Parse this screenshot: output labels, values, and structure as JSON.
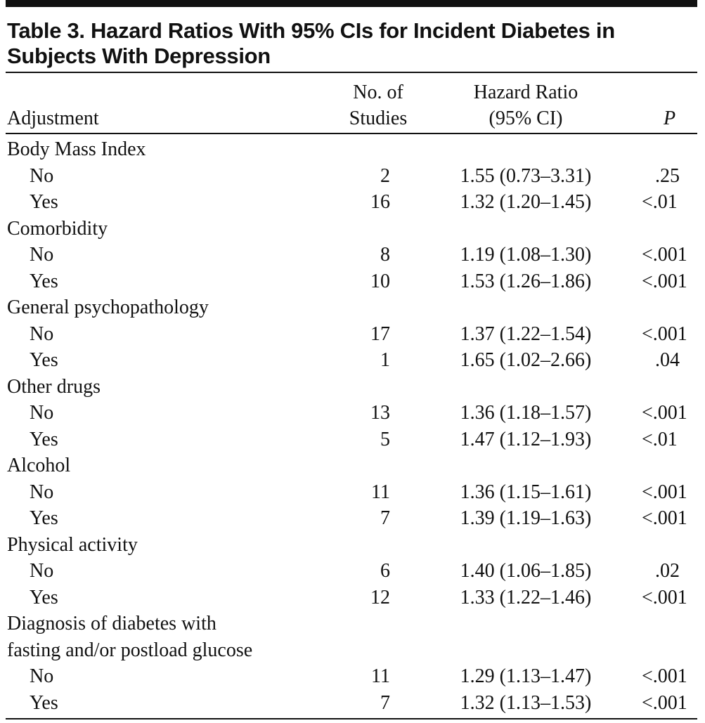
{
  "table": {
    "title": [
      "Table 3. Hazard Ratios With 95% CIs for Incident Diabetes in",
      "Subjects With Depression"
    ],
    "columns": {
      "adjustment": "Adjustment",
      "studies": [
        "No. of",
        "Studies"
      ],
      "hazard_ratio": [
        "Hazard Ratio",
        "(95% CI)"
      ],
      "p": "P"
    },
    "groups": [
      {
        "label": [
          "Body Mass Index"
        ],
        "rows": [
          [
            "No",
            2,
            "1.55 (0.73–3.31)",
            ".25"
          ],
          [
            "Yes",
            16,
            "1.32 (1.20–1.45)",
            "<.01"
          ]
        ]
      },
      {
        "label": [
          "Comorbidity"
        ],
        "rows": [
          [
            "No",
            8,
            "1.19 (1.08–1.30)",
            "<.001"
          ],
          [
            "Yes",
            10,
            "1.53 (1.26–1.86)",
            "<.001"
          ]
        ]
      },
      {
        "label": [
          "General psychopathology"
        ],
        "rows": [
          [
            "No",
            17,
            "1.37 (1.22–1.54)",
            "<.001"
          ],
          [
            "Yes",
            1,
            "1.65 (1.02–2.66)",
            ".04"
          ]
        ]
      },
      {
        "label": [
          "Other drugs"
        ],
        "rows": [
          [
            "No",
            13,
            "1.36 (1.18–1.57)",
            "<.001"
          ],
          [
            "Yes",
            5,
            "1.47 (1.12–1.93)",
            "<.01"
          ]
        ]
      },
      {
        "label": [
          "Alcohol"
        ],
        "rows": [
          [
            "No",
            11,
            "1.36 (1.15–1.61)",
            "<.001"
          ],
          [
            "Yes",
            7,
            "1.39 (1.19–1.63)",
            "<.001"
          ]
        ]
      },
      {
        "label": [
          "Physical activity"
        ],
        "rows": [
          [
            "No",
            6,
            "1.40 (1.06–1.85)",
            ".02"
          ],
          [
            "Yes",
            12,
            "1.33 (1.22–1.46)",
            "<.001"
          ]
        ]
      },
      {
        "label": [
          "Diagnosis of diabetes with",
          "fasting and/or postload glucose"
        ],
        "rows": [
          [
            "No",
            11,
            "1.29 (1.13–1.47)",
            "<.001"
          ],
          [
            "Yes",
            7,
            "1.32 (1.13–1.53)",
            "<.001"
          ]
        ]
      }
    ]
  }
}
